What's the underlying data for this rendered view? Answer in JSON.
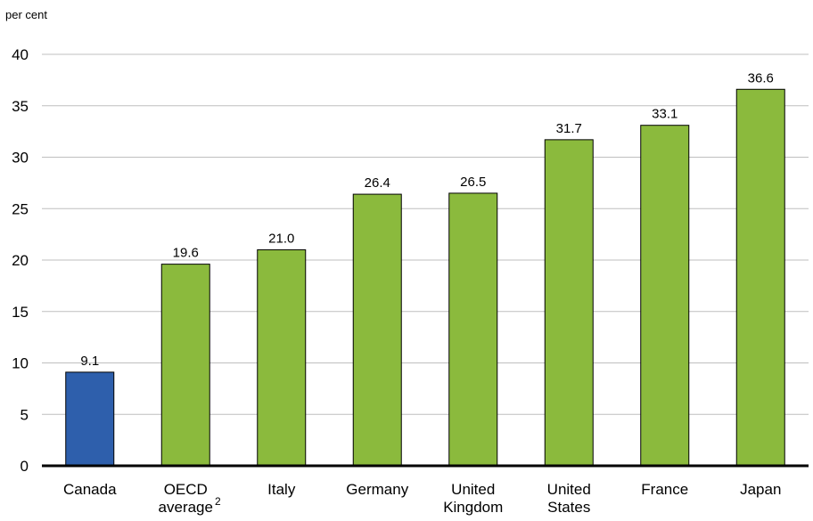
{
  "chart_data": {
    "type": "bar",
    "unit_label": "per cent",
    "categories": [
      {
        "lines": [
          "Canada"
        ],
        "footnote": ""
      },
      {
        "lines": [
          "OECD",
          "average"
        ],
        "footnote": "2"
      },
      {
        "lines": [
          "Italy"
        ],
        "footnote": ""
      },
      {
        "lines": [
          "Germany"
        ],
        "footnote": ""
      },
      {
        "lines": [
          "United",
          "Kingdom"
        ],
        "footnote": ""
      },
      {
        "lines": [
          "United",
          "States"
        ],
        "footnote": ""
      },
      {
        "lines": [
          "France"
        ],
        "footnote": ""
      },
      {
        "lines": [
          "Japan"
        ],
        "footnote": ""
      }
    ],
    "values": [
      9.1,
      19.6,
      21.0,
      26.4,
      26.5,
      31.7,
      33.1,
      36.6
    ],
    "value_labels": [
      "9.1",
      "19.6",
      "21.0",
      "26.4",
      "26.5",
      "31.7",
      "33.1",
      "36.6"
    ],
    "colors": [
      "#2e5fac",
      "#8bba3d",
      "#8bba3d",
      "#8bba3d",
      "#8bba3d",
      "#8bba3d",
      "#8bba3d",
      "#8bba3d"
    ],
    "ylim": [
      0,
      40
    ],
    "yticks": [
      0,
      5,
      10,
      15,
      20,
      25,
      30,
      35,
      40
    ],
    "grid": true,
    "legend": "none"
  }
}
